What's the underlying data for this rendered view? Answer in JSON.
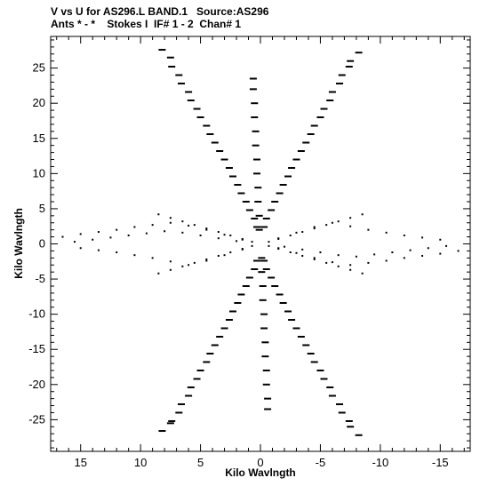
{
  "header": {
    "line1": "V vs U for AS296.L BAND.1   Source:AS296",
    "line2": "Ants * - *    Stokes I  IF# 1 - 2  Chan# 1"
  },
  "chart_data": {
    "type": "scatter",
    "title": "V vs U for AS296.L BAND.1   Source:AS296",
    "subtitle": "Ants * - *    Stokes I  IF# 1 - 2  Chan# 1",
    "xlabel": "Kilo Wavlngth",
    "ylabel": "Kilo Wavlngth",
    "xlim": [
      17.5,
      -17.5
    ],
    "ylim": [
      -29.5,
      29.5
    ],
    "x_reversed": true,
    "x_ticks": [
      15,
      10,
      5,
      0,
      -5,
      -10,
      -15
    ],
    "x_tick_labels": [
      "15",
      "10",
      "5",
      "0",
      "-5",
      "-10",
      "-15"
    ],
    "y_ticks": [
      -25,
      -20,
      -15,
      -10,
      -5,
      0,
      5,
      10,
      15,
      20,
      25
    ],
    "y_tick_labels": [
      "-25",
      "-20",
      "-15",
      "-10",
      "-5",
      "0",
      "5",
      "10",
      "15",
      "20",
      "25"
    ],
    "grid": false,
    "legend": "none",
    "point_color": "#000000",
    "series": [
      {
        "marker": "dash",
        "x": [
          8.2,
          7.4,
          6.6,
          5.8,
          5.0,
          4.2,
          3.4,
          2.6,
          1.9,
          1.2,
          0.5
        ],
        "y": [
          27.6,
          25.2,
          22.8,
          20.4,
          18.0,
          15.6,
          13.2,
          10.8,
          8.4,
          6.0,
          3.6
        ]
      },
      {
        "marker": "dash",
        "x": [
          7.5,
          6.8,
          6.0,
          5.3,
          4.5,
          3.8,
          3.0,
          2.3,
          1.6,
          0.9,
          0.3
        ],
        "y": [
          26.5,
          24.0,
          21.6,
          19.2,
          16.8,
          14.4,
          12.0,
          9.6,
          7.2,
          4.8,
          2.4
        ]
      },
      {
        "marker": "dash",
        "x": [
          -0.5,
          -1.2,
          -1.9,
          -2.6,
          -3.4,
          -4.2,
          -5.0,
          -5.8,
          -6.6,
          -7.4,
          -8.2
        ],
        "y": [
          3.6,
          6.0,
          8.4,
          10.8,
          13.2,
          15.6,
          18.0,
          20.4,
          22.8,
          25.2,
          27.2
        ]
      },
      {
        "marker": "dash",
        "x": [
          -0.3,
          -0.9,
          -1.6,
          -2.3,
          -3.0,
          -3.8,
          -4.5,
          -5.3,
          -6.0,
          -6.8,
          -7.5
        ],
        "y": [
          2.4,
          4.8,
          7.2,
          9.6,
          12.0,
          14.4,
          16.8,
          19.2,
          21.6,
          24.0,
          26.0
        ]
      },
      {
        "marker": "dash",
        "x": [
          -8.2,
          -7.4,
          -6.6,
          -5.8,
          -5.0,
          -4.2,
          -3.4,
          -2.6,
          -1.9,
          -1.2,
          -0.5
        ],
        "y": [
          -27.2,
          -25.2,
          -22.8,
          -20.4,
          -18.0,
          -15.6,
          -13.2,
          -10.8,
          -8.4,
          -6.0,
          -3.6
        ]
      },
      {
        "marker": "dash",
        "x": [
          -7.5,
          -6.8,
          -6.0,
          -5.3,
          -4.5,
          -3.8,
          -3.0,
          -2.3,
          -1.6,
          -0.9,
          -0.3
        ],
        "y": [
          -26.0,
          -24.0,
          -21.6,
          -19.2,
          -16.8,
          -14.4,
          -12.0,
          -9.6,
          -7.2,
          -4.8,
          -2.4
        ]
      },
      {
        "marker": "dash",
        "x": [
          0.5,
          1.2,
          1.9,
          2.6,
          3.4,
          4.2,
          5.0,
          5.8,
          6.6,
          7.4,
          8.2
        ],
        "y": [
          -3.6,
          -6.0,
          -8.4,
          -10.8,
          -13.2,
          -15.6,
          -18.0,
          -20.4,
          -22.8,
          -25.2,
          -26.6
        ]
      },
      {
        "marker": "dash",
        "x": [
          0.3,
          0.9,
          1.6,
          2.3,
          3.0,
          3.8,
          4.5,
          5.3,
          6.0,
          6.8,
          7.5
        ],
        "y": [
          -2.4,
          -4.8,
          -7.2,
          -9.6,
          -12.0,
          -14.4,
          -16.8,
          -19.2,
          -21.6,
          -24.0,
          -25.5
        ]
      },
      {
        "marker": "dash",
        "x": [
          0.1,
          0.1,
          0.2,
          0.2,
          0.3,
          0.3,
          0.4,
          0.4,
          0.5,
          0.5,
          0.6,
          0.6
        ],
        "y": [
          2,
          4,
          6,
          8,
          10,
          12,
          14,
          16,
          18,
          20,
          22,
          23.5
        ]
      },
      {
        "marker": "dash",
        "x": [
          -0.1,
          -0.1,
          -0.2,
          -0.2,
          -0.3,
          -0.3,
          -0.4,
          -0.4,
          -0.5,
          -0.5,
          -0.6,
          -0.6
        ],
        "y": [
          -2,
          -4,
          -6,
          -8,
          -10,
          -12,
          -14,
          -16,
          -18,
          -20,
          -22,
          -23.5
        ]
      },
      {
        "marker": "dot",
        "x": [
          16.5,
          15.0,
          13.5,
          12.0,
          10.5,
          9.0,
          7.5,
          6.0,
          4.5,
          3.0,
          1.5
        ],
        "y": [
          1.0,
          1.4,
          1.7,
          2.0,
          2.4,
          2.7,
          3.0,
          2.6,
          2.0,
          1.3,
          0.6
        ]
      },
      {
        "marker": "dot",
        "x": [
          15.5,
          14.0,
          12.5,
          11.0,
          9.5,
          8.0,
          6.5,
          5.0,
          3.5,
          2.0
        ],
        "y": [
          0.3,
          0.6,
          0.9,
          1.2,
          1.5,
          1.8,
          1.6,
          1.2,
          0.8,
          0.4
        ]
      },
      {
        "marker": "dot",
        "x": [
          15.0,
          13.5,
          12.0,
          10.5,
          9.0,
          7.5,
          6.0,
          4.5,
          3.0,
          1.5
        ],
        "y": [
          -0.6,
          -0.9,
          -1.2,
          -1.6,
          -2.0,
          -2.5,
          -3.0,
          -2.4,
          -1.6,
          -0.8
        ]
      },
      {
        "marker": "dot",
        "x": [
          -16.5,
          -15.0,
          -13.5,
          -12.0,
          -10.5,
          -9.0,
          -7.5,
          -6.0,
          -4.5,
          -3.0,
          -1.5
        ],
        "y": [
          -1.0,
          -1.4,
          -1.7,
          -2.0,
          -2.4,
          -2.7,
          -3.0,
          -2.6,
          -2.0,
          -1.3,
          -0.6
        ]
      },
      {
        "marker": "dot",
        "x": [
          -15.5,
          -14.0,
          -12.5,
          -11.0,
          -9.5,
          -8.0,
          -6.5,
          -5.0,
          -3.5,
          -2.0
        ],
        "y": [
          -0.3,
          -0.6,
          -0.9,
          -1.2,
          -1.5,
          -1.8,
          -1.6,
          -1.2,
          -0.8,
          -0.4
        ]
      },
      {
        "marker": "dot",
        "x": [
          -15.0,
          -13.5,
          -12.0,
          -10.5,
          -9.0,
          -7.5,
          -6.0,
          -4.5,
          -3.0,
          -1.5
        ],
        "y": [
          0.6,
          0.9,
          1.2,
          1.6,
          2.0,
          2.5,
          3.0,
          2.4,
          1.6,
          0.8
        ]
      },
      {
        "marker": "dot",
        "x": [
          8.5,
          7.5,
          6.5,
          5.5,
          4.5,
          3.5,
          2.5,
          1.5,
          0.7
        ],
        "y": [
          4.2,
          3.7,
          3.2,
          2.7,
          2.2,
          1.7,
          1.2,
          0.7,
          0.3
        ]
      },
      {
        "marker": "dot",
        "x": [
          -8.5,
          -7.5,
          -6.5,
          -5.5,
          -4.5,
          -3.5,
          -2.5,
          -1.5,
          -0.7
        ],
        "y": [
          -4.2,
          -3.7,
          -3.2,
          -2.7,
          -2.2,
          -1.7,
          -1.2,
          -0.7,
          -0.3
        ]
      },
      {
        "marker": "dot",
        "x": [
          -8.5,
          -7.5,
          -6.5,
          -5.5,
          -4.5,
          -3.5,
          -2.5,
          -1.5,
          -0.7
        ],
        "y": [
          4.2,
          3.7,
          3.2,
          2.7,
          2.2,
          1.7,
          1.2,
          0.7,
          0.3
        ]
      },
      {
        "marker": "dot",
        "x": [
          8.5,
          7.5,
          6.5,
          5.5,
          4.5,
          3.5,
          2.5,
          1.5,
          0.7
        ],
        "y": [
          -4.2,
          -3.7,
          -3.2,
          -2.7,
          -2.2,
          -1.7,
          -1.2,
          -0.7,
          -0.3
        ]
      }
    ]
  }
}
